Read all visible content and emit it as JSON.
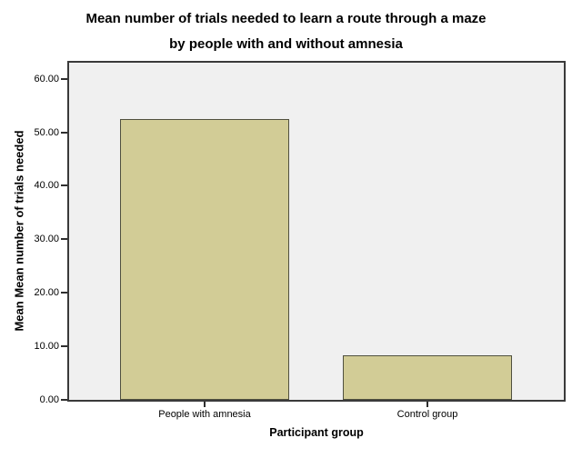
{
  "title": {
    "line1": "Mean number of trials needed to learn a route through a maze",
    "line2": "by people with and without amnesia"
  },
  "chart_data": {
    "type": "bar",
    "title": "Mean number of trials needed to learn a route through a maze by people with and without amnesia",
    "categories": [
      "People with amnesia",
      "Control group"
    ],
    "values": [
      52.5,
      8.4
    ],
    "xlabel": "Participant group",
    "ylabel": "Mean Mean number of trials needed",
    "ylim": [
      0,
      63
    ],
    "yticks": [
      {
        "value": 0,
        "label": "0.00"
      },
      {
        "value": 10,
        "label": "10.00"
      },
      {
        "value": 20,
        "label": "20.00"
      },
      {
        "value": 30,
        "label": "30.00"
      },
      {
        "value": 40,
        "label": "40.00"
      },
      {
        "value": 50,
        "label": "50.00"
      },
      {
        "value": 60,
        "label": "60.00"
      }
    ],
    "grid": false,
    "legend": false,
    "colors": {
      "bar_fill": "#D2CC96",
      "bar_border": "#50503F",
      "plot_background": "#F0F0F0",
      "plot_border": "#3A3A3A",
      "text": "#000000"
    }
  }
}
